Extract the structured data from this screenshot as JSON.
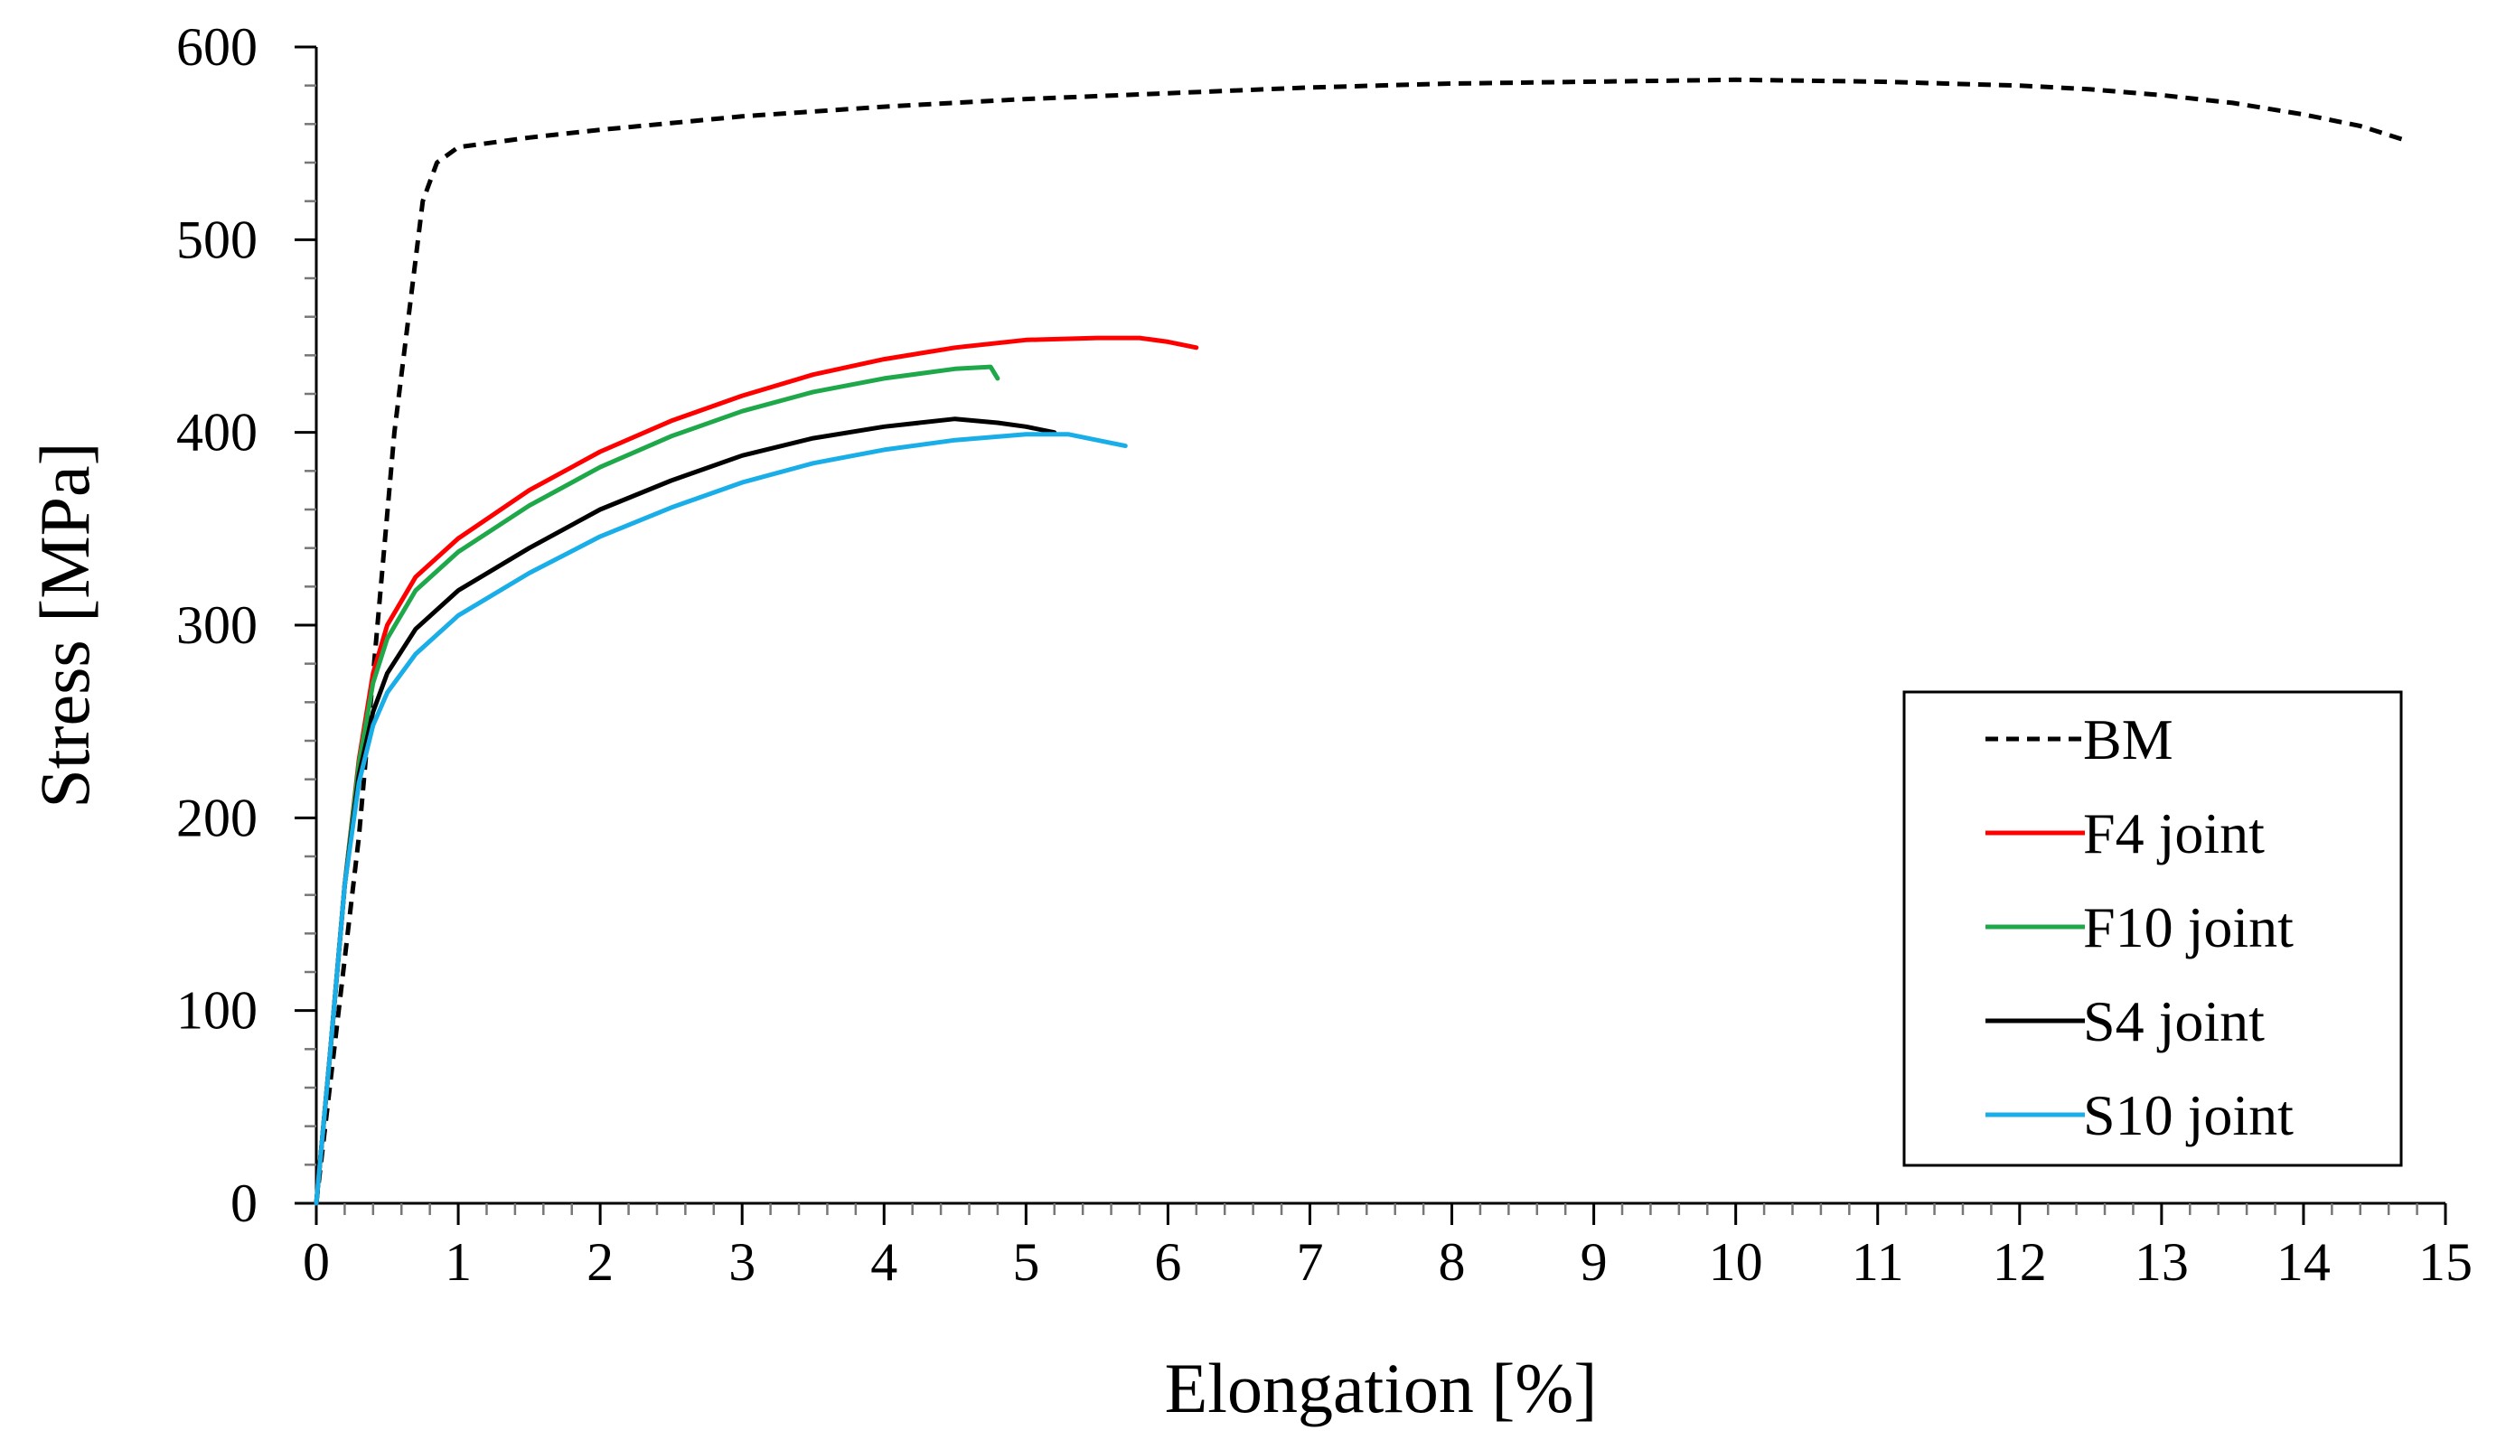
{
  "chart_data": {
    "type": "line",
    "title": "",
    "xlabel": "Elongation [%]",
    "ylabel": "Stress [MPa]",
    "xlim": [
      0,
      15
    ],
    "ylim": [
      0,
      600
    ],
    "x_ticks": [
      "0",
      "1",
      "2",
      "3",
      "4",
      "5",
      "6",
      "7",
      "8",
      "9",
      "10",
      "11",
      "12",
      "13",
      "14",
      "15"
    ],
    "y_ticks": [
      "0",
      "100",
      "200",
      "300",
      "400",
      "500",
      "600"
    ],
    "x_minor_step": 0.2,
    "y_minor_step": 20,
    "grid": false,
    "legend_position": "bottom-right",
    "series": [
      {
        "name": "BM",
        "color": "#000000",
        "dash": "dashed",
        "points": [
          [
            0,
            0
          ],
          [
            0.3,
            190
          ],
          [
            0.55,
            400
          ],
          [
            0.75,
            520
          ],
          [
            0.85,
            540
          ],
          [
            1.0,
            548
          ],
          [
            1.5,
            553
          ],
          [
            2,
            557
          ],
          [
            3,
            564
          ],
          [
            4,
            569
          ],
          [
            5,
            573
          ],
          [
            6,
            576
          ],
          [
            7,
            579
          ],
          [
            8,
            581
          ],
          [
            9,
            582
          ],
          [
            10,
            583
          ],
          [
            11,
            582
          ],
          [
            12,
            580
          ],
          [
            12.5,
            578
          ],
          [
            13,
            575
          ],
          [
            13.5,
            571
          ],
          [
            14,
            565
          ],
          [
            14.4,
            559
          ],
          [
            14.7,
            552
          ]
        ]
      },
      {
        "name": "F4 joint",
        "color": "#ff0000",
        "dash": "solid",
        "points": [
          [
            0,
            0
          ],
          [
            0.1,
            80
          ],
          [
            0.2,
            165
          ],
          [
            0.3,
            230
          ],
          [
            0.4,
            275
          ],
          [
            0.5,
            300
          ],
          [
            0.7,
            325
          ],
          [
            1.0,
            345
          ],
          [
            1.5,
            370
          ],
          [
            2,
            390
          ],
          [
            2.5,
            406
          ],
          [
            3,
            419
          ],
          [
            3.5,
            430
          ],
          [
            4,
            438
          ],
          [
            4.5,
            444
          ],
          [
            5,
            448
          ],
          [
            5.5,
            449
          ],
          [
            5.8,
            449
          ],
          [
            6.0,
            447
          ],
          [
            6.2,
            444
          ]
        ]
      },
      {
        "name": "F10 joint",
        "color": "#1fa84a",
        "dash": "solid",
        "points": [
          [
            0,
            0
          ],
          [
            0.1,
            80
          ],
          [
            0.2,
            165
          ],
          [
            0.3,
            228
          ],
          [
            0.4,
            270
          ],
          [
            0.5,
            293
          ],
          [
            0.7,
            318
          ],
          [
            1.0,
            338
          ],
          [
            1.5,
            362
          ],
          [
            2,
            382
          ],
          [
            2.5,
            398
          ],
          [
            3,
            411
          ],
          [
            3.5,
            421
          ],
          [
            4,
            428
          ],
          [
            4.5,
            433
          ],
          [
            4.75,
            434
          ],
          [
            4.8,
            428
          ]
        ]
      },
      {
        "name": "S4 joint",
        "color": "#000000",
        "dash": "solid",
        "points": [
          [
            0,
            0
          ],
          [
            0.1,
            80
          ],
          [
            0.2,
            165
          ],
          [
            0.3,
            222
          ],
          [
            0.4,
            255
          ],
          [
            0.5,
            275
          ],
          [
            0.7,
            298
          ],
          [
            1.0,
            318
          ],
          [
            1.5,
            340
          ],
          [
            2,
            360
          ],
          [
            2.5,
            375
          ],
          [
            3,
            388
          ],
          [
            3.5,
            397
          ],
          [
            4,
            403
          ],
          [
            4.5,
            407
          ],
          [
            4.8,
            405
          ],
          [
            5.0,
            403
          ],
          [
            5.2,
            400
          ]
        ]
      },
      {
        "name": "S10 joint",
        "color": "#1aaee8",
        "dash": "solid",
        "points": [
          [
            0,
            0
          ],
          [
            0.1,
            80
          ],
          [
            0.2,
            165
          ],
          [
            0.3,
            218
          ],
          [
            0.4,
            248
          ],
          [
            0.5,
            265
          ],
          [
            0.7,
            285
          ],
          [
            1.0,
            305
          ],
          [
            1.5,
            327
          ],
          [
            2,
            346
          ],
          [
            2.5,
            361
          ],
          [
            3,
            374
          ],
          [
            3.5,
            384
          ],
          [
            4,
            391
          ],
          [
            4.5,
            396
          ],
          [
            5,
            399
          ],
          [
            5.3,
            399
          ],
          [
            5.5,
            396
          ],
          [
            5.7,
            393
          ]
        ]
      }
    ]
  }
}
